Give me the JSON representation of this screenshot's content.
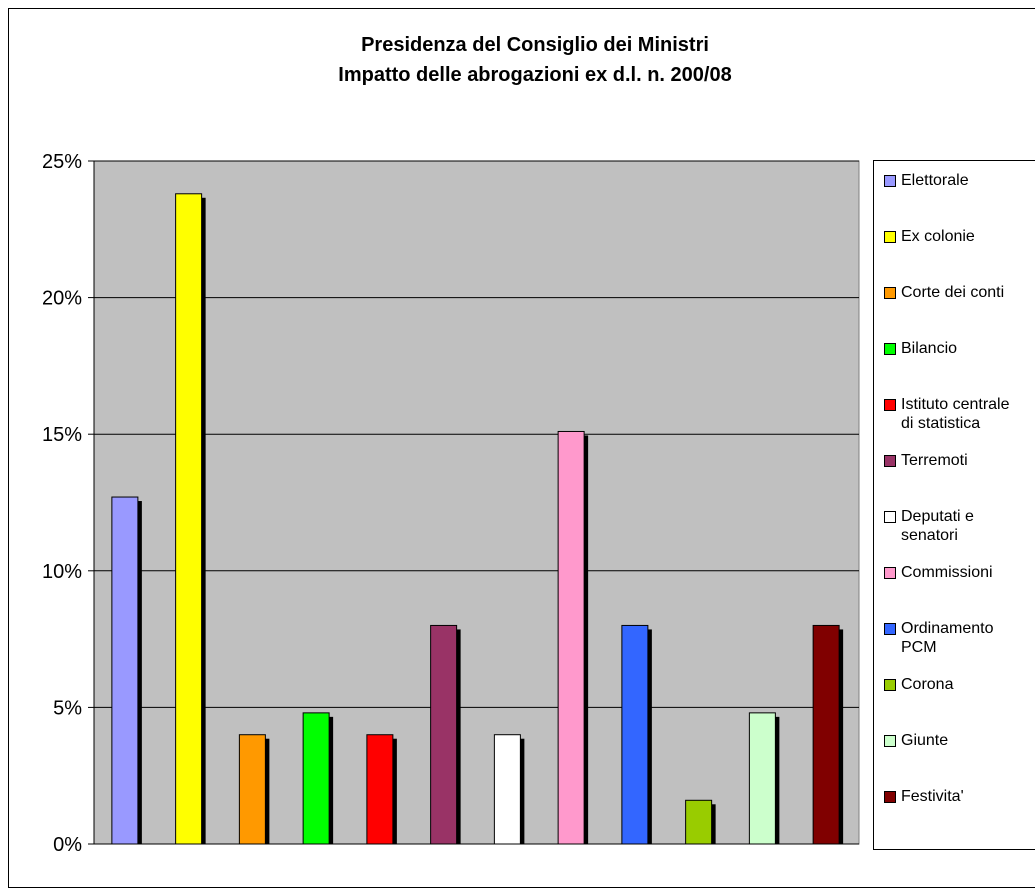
{
  "chart_data": {
    "type": "bar",
    "title": "Presidenza del Consiglio dei Ministri\nImpatto delle abrogazioni ex d.l. n. 200/08",
    "xlabel": "",
    "ylabel": "",
    "ylim": [
      0,
      25
    ],
    "yticks": [
      "0%",
      "5%",
      "10%",
      "15%",
      "20%",
      "25%"
    ],
    "grid": true,
    "legend_position": "right",
    "categories": [
      "Elettorale",
      "Ex colonie",
      "Corte dei conti",
      "Bilancio",
      "Istituto centrale\ndi statistica",
      "Terremoti",
      "Deputati e\nsenatori",
      "Commissioni",
      "Ordinamento\nPCM",
      "Corona",
      "Giunte",
      "Festivita'"
    ],
    "values": [
      12.7,
      23.8,
      4.0,
      4.8,
      4.0,
      8.0,
      4.0,
      15.1,
      8.0,
      1.6,
      4.8,
      8.0
    ],
    "colors": [
      "#9999ff",
      "#ffff00",
      "#ff9900",
      "#00ff00",
      "#ff0000",
      "#993366",
      "#ffffff",
      "#ff99cc",
      "#3366ff",
      "#99cc00",
      "#ccffcc",
      "#800000"
    ],
    "plot_background": "#c0c0c0"
  }
}
